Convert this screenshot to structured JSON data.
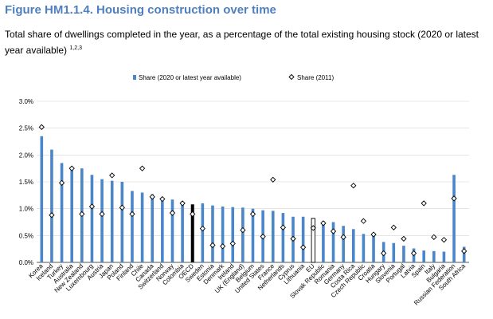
{
  "header": {
    "title": "Figure HM1.1.4. Housing construction over time",
    "subtitle": "Total share of dwellings completed in the year, as a percentage of the total existing housing stock (2020 or latest year available)",
    "subtitle_notes": "1,2,3"
  },
  "colors": {
    "bar": "#4a86c8",
    "oecd": "#000000",
    "eu_fill": "#ffffff",
    "eu_stroke": "#000000",
    "marker": "#000000"
  },
  "chart_data": {
    "type": "bar",
    "categories": [
      "Korea",
      "Iceland",
      "Turkey",
      "Australia",
      "New Zealand",
      "Luxembourg",
      "Austria",
      "Japan",
      "Poland",
      "Finland",
      "Chile",
      "Canada",
      "Switzerland",
      "Norway",
      "Colombia",
      "OECD",
      "Sweden",
      "Estonia",
      "Denmark",
      "Ireland",
      "UK (England)",
      "Belgium",
      "United States",
      "France",
      "Netherlands",
      "Cyprus",
      "Lithuania",
      "EU",
      "Slovak Republic",
      "Romania",
      "Germany",
      "Costa Rica",
      "Czech Republic",
      "Croatia",
      "Hungary",
      "Slovenia",
      "Portugal",
      "Latvia",
      "Spain",
      "Italy",
      "Bulgaria",
      "Russian Federation",
      "South Africa"
    ],
    "series": [
      {
        "name": "Share (2020 or latest year available)",
        "kind": "bar",
        "values": [
          2.35,
          2.1,
          1.85,
          1.78,
          1.75,
          1.63,
          1.55,
          1.52,
          1.5,
          1.33,
          1.3,
          1.27,
          1.2,
          1.17,
          1.13,
          1.08,
          1.1,
          1.06,
          1.04,
          1.03,
          1.02,
          1.0,
          0.97,
          0.96,
          0.92,
          0.85,
          0.85,
          0.82,
          0.77,
          0.75,
          0.68,
          0.62,
          0.53,
          0.51,
          0.38,
          0.36,
          0.31,
          0.26,
          0.22,
          0.21,
          0.2,
          1.63,
          0.29
        ]
      },
      {
        "name": "Share (2011)",
        "kind": "marker",
        "values": [
          2.52,
          0.88,
          1.48,
          1.75,
          0.9,
          1.04,
          0.9,
          1.62,
          1.02,
          0.9,
          1.75,
          1.22,
          1.18,
          0.92,
          1.1,
          0.9,
          0.63,
          0.32,
          0.3,
          0.35,
          0.6,
          0.9,
          0.48,
          1.54,
          0.65,
          0.44,
          0.28,
          0.64,
          0.73,
          0.58,
          0.47,
          1.43,
          0.77,
          0.52,
          0.17,
          0.65,
          0.44,
          0.17,
          1.1,
          0.47,
          0.42,
          1.19,
          0.21
        ]
      }
    ],
    "highlight": {
      "OECD": "solid-black",
      "EU": "outline"
    },
    "y_ticks": [
      "0.0%",
      "0.5%",
      "1.0%",
      "1.5%",
      "2.0%",
      "2.5%",
      "3.0%"
    ],
    "ylim": [
      0,
      3.0
    ],
    "grid": "horizontal",
    "legend_position": "top"
  }
}
